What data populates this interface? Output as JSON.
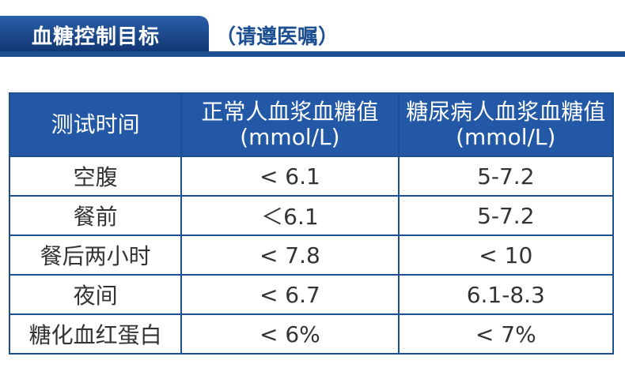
{
  "header": {
    "title": "血糖控制目标",
    "note": "（请遵医嘱）"
  },
  "table": {
    "header": [
      [
        "测试时间"
      ],
      [
        "正常人血浆血糖值",
        "(mmol/L)"
      ],
      [
        "糖尿病人血浆血糖值",
        "(mmol/L)"
      ]
    ],
    "rows": [
      [
        "空腹",
        "< 6.1",
        "5-7.2"
      ],
      [
        "餐前",
        "＜6.1",
        "5-7.2"
      ],
      [
        "餐后两小时",
        "< 7.8",
        "< 10"
      ],
      [
        "夜间",
        "< 6.7",
        "6.1-8.3"
      ],
      [
        "糖化血红蛋白",
        "< 6%",
        "< 7%"
      ]
    ]
  }
}
